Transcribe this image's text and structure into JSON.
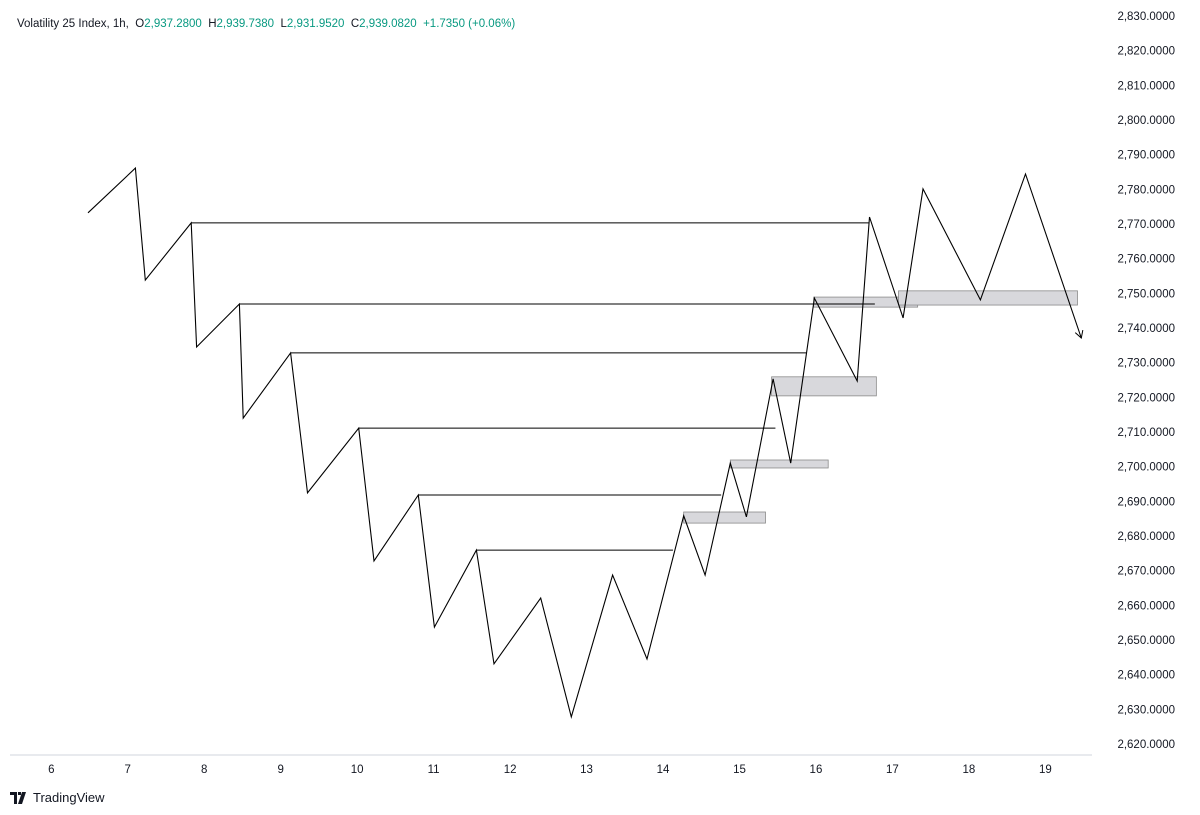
{
  "header": {
    "symbol": "Volatility 25 Index, 1h,",
    "ohlc": [
      {
        "label": "O",
        "value": "2,937.2800"
      },
      {
        "label": "H",
        "value": "2,939.7380"
      },
      {
        "label": "L",
        "value": "2,931.9520"
      },
      {
        "label": "C",
        "value": "2,939.0820"
      }
    ],
    "change": "+1.7350 (+0.06%)"
  },
  "footer": {
    "brand": "TradingView"
  },
  "chart_data": {
    "type": "line",
    "color": "#000000",
    "x": [
      6.48,
      7.1,
      7.23,
      7.83,
      7.9,
      8.46,
      8.51,
      9.13,
      9.35,
      10.02,
      10.22,
      10.8,
      11.01,
      11.56,
      11.79,
      12.4,
      12.8,
      13.34,
      13.79,
      14.27,
      14.55,
      14.88,
      15.09,
      15.44,
      15.67,
      15.98,
      16.54,
      16.7,
      17.14,
      17.4,
      18.15,
      18.74,
      19.47
    ],
    "values": [
      2773.5,
      2786.4,
      2754.1,
      2770.6,
      2734.8,
      2747.2,
      2714.3,
      2733.1,
      2692.7,
      2711.4,
      2673.1,
      2692.1,
      2654.0,
      2676.2,
      2643.4,
      2662.4,
      2628.1,
      2669.0,
      2644.8,
      2686.1,
      2669.0,
      2701.3,
      2685.8,
      2725.6,
      2701.3,
      2748.9,
      2725.0,
      2772.3,
      2743.2,
      2780.4,
      2748.4,
      2784.7,
      2737.4
    ],
    "hlines": [
      {
        "x": [
          7.83,
          16.69
        ],
        "y": 2770.6
      },
      {
        "x": [
          8.46,
          16.77
        ],
        "y": 2747.2
      },
      {
        "x": [
          9.13,
          15.87
        ],
        "y": 2733.1
      },
      {
        "x": [
          10.02,
          15.47
        ],
        "y": 2711.4
      },
      {
        "x": [
          10.8,
          14.76
        ],
        "y": 2692.1
      },
      {
        "x": [
          11.56,
          14.13
        ],
        "y": 2676.2
      }
    ],
    "zones": [
      {
        "x": [
          14.27,
          15.34
        ],
        "y": [
          2687.2,
          2684.0
        ]
      },
      {
        "x": [
          14.88,
          16.16
        ],
        "y": [
          2702.2,
          2699.9
        ]
      },
      {
        "x": [
          15.42,
          16.79
        ],
        "y": [
          2726.2,
          2720.7
        ]
      },
      {
        "x": [
          15.97,
          17.33
        ],
        "y": [
          2749.2,
          2746.3
        ]
      },
      {
        "x": [
          17.08,
          19.42
        ],
        "y": [
          2751.0,
          2746.9
        ]
      }
    ],
    "zone_color": "#d8d8dc",
    "xlim": [
      5.46,
      19.61
    ],
    "xticks": [
      6,
      7,
      8,
      9,
      10,
      11,
      12,
      13,
      14,
      15,
      16,
      17,
      18,
      19
    ],
    "ylim": [
      2617.1,
      2834.9
    ],
    "yticks": [
      {
        "value": 2620,
        "label": "2,620.0000"
      },
      {
        "value": 2630,
        "label": "2,630.0000"
      },
      {
        "value": 2640,
        "label": "2,640.0000"
      },
      {
        "value": 2650,
        "label": "2,650.0000"
      },
      {
        "value": 2660,
        "label": "2,660.0000"
      },
      {
        "value": 2670,
        "label": "2,670.0000"
      },
      {
        "value": 2680,
        "label": "2,680.0000"
      },
      {
        "value": 2690,
        "label": "2,690.0000"
      },
      {
        "value": 2700,
        "label": "2,700.0000"
      },
      {
        "value": 2710,
        "label": "2,710.0000"
      },
      {
        "value": 2720,
        "label": "2,720.0000"
      },
      {
        "value": 2730,
        "label": "2,730.0000"
      },
      {
        "value": 2740,
        "label": "2,740.0000"
      },
      {
        "value": 2750,
        "label": "2,750.0000"
      },
      {
        "value": 2760,
        "label": "2,760.0000"
      },
      {
        "value": 2770,
        "label": "2,770.0000"
      },
      {
        "value": 2780,
        "label": "2,780.0000"
      },
      {
        "value": 2790,
        "label": "2,790.0000"
      },
      {
        "value": 2800,
        "label": "2,800.0000"
      },
      {
        "value": 2810,
        "label": "2,810.0000"
      },
      {
        "value": 2820,
        "label": "2,820.0000"
      },
      {
        "value": 2830,
        "label": "2,830.0000"
      }
    ]
  }
}
